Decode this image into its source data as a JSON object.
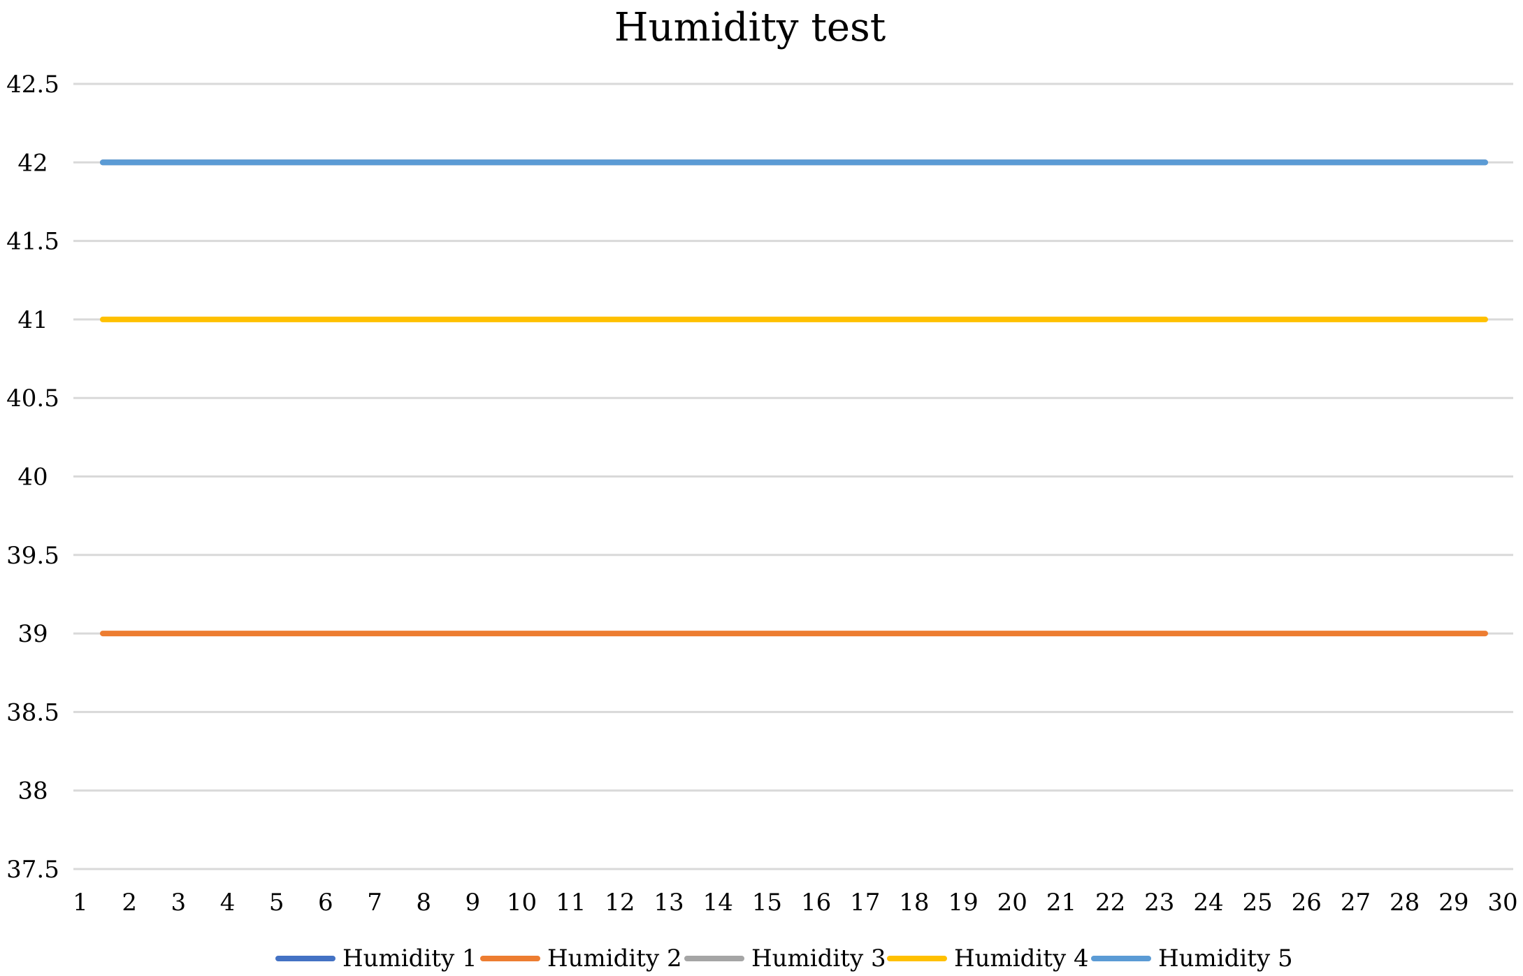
{
  "chart_data": {
    "type": "line",
    "title": "Humidity test",
    "xlabel": "",
    "ylabel": "",
    "x": [
      1,
      2,
      3,
      4,
      5,
      6,
      7,
      8,
      9,
      10,
      11,
      12,
      13,
      14,
      15,
      16,
      17,
      18,
      19,
      20,
      21,
      22,
      23,
      24,
      25,
      26,
      27,
      28,
      29,
      30
    ],
    "y_ticks": [
      "42.5",
      "42",
      "41.5",
      "41",
      "40.5",
      "40",
      "39.5",
      "39",
      "38.5",
      "38",
      "37.5"
    ],
    "ylim": [
      37.5,
      42.5
    ],
    "grid": true,
    "legend": "bottom",
    "series": [
      {
        "name": "Humidity 1",
        "color": "#4472C4",
        "values": [
          42,
          42,
          42,
          42,
          42,
          42,
          42,
          42,
          42,
          42,
          42,
          42,
          42,
          42,
          42,
          42,
          42,
          42,
          42,
          42,
          42,
          42,
          42,
          42,
          42,
          42,
          42,
          42,
          42,
          42
        ]
      },
      {
        "name": "Humidity 2",
        "color": "#ED7D31",
        "values": [
          39,
          39,
          39,
          39,
          39,
          39,
          39,
          39,
          39,
          39,
          39,
          39,
          39,
          39,
          39,
          39,
          39,
          39,
          39,
          39,
          39,
          39,
          39,
          39,
          39,
          39,
          39,
          39,
          39,
          39
        ]
      },
      {
        "name": "Humidity 3",
        "color": "#A5A5A5",
        "values": [
          42,
          42,
          42,
          42,
          42,
          42,
          42,
          42,
          42,
          42,
          42,
          42,
          42,
          42,
          42,
          42,
          42,
          42,
          42,
          42,
          42,
          42,
          42,
          42,
          42,
          42,
          42,
          42,
          42,
          42
        ]
      },
      {
        "name": "Humidity 4",
        "color": "#FFC000",
        "values": [
          41,
          41,
          41,
          41,
          41,
          41,
          41,
          41,
          41,
          41,
          41,
          41,
          41,
          41,
          41,
          41,
          41,
          41,
          41,
          41,
          41,
          41,
          41,
          41,
          41,
          41,
          41,
          41,
          41,
          41
        ]
      },
      {
        "name": "Humidity 5",
        "color": "#5B9BD5",
        "values": [
          42,
          42,
          42,
          42,
          42,
          42,
          42,
          42,
          42,
          42,
          42,
          42,
          42,
          42,
          42,
          42,
          42,
          42,
          42,
          42,
          42,
          42,
          42,
          42,
          42,
          42,
          42,
          42,
          42,
          42
        ]
      }
    ]
  }
}
